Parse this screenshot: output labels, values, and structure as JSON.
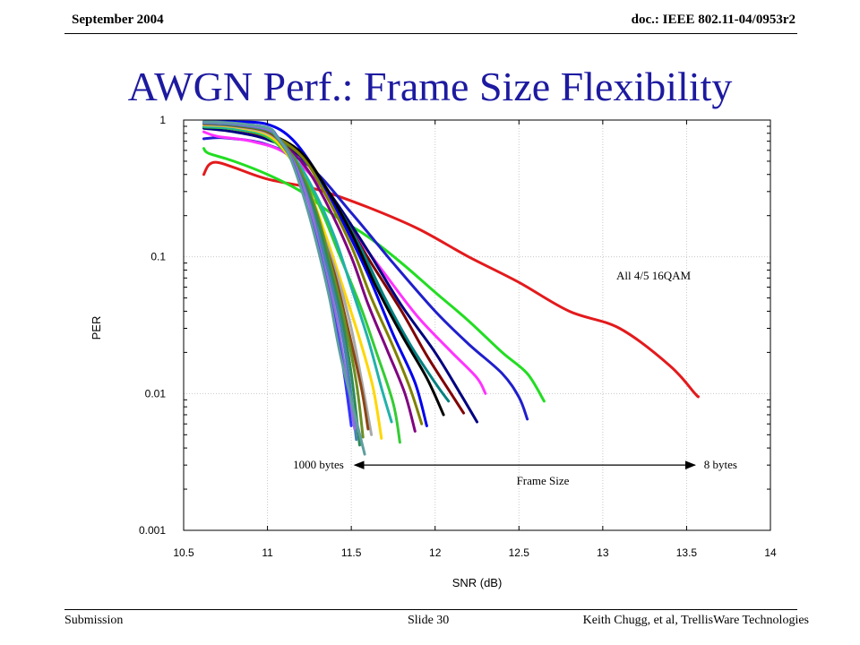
{
  "header": {
    "date": "September 2004",
    "doc_id": "doc.: IEEE 802.11-04/0953r2"
  },
  "slide": {
    "title": "AWGN Perf.: Frame Size Flexibility"
  },
  "footer": {
    "left": "Submission",
    "center": "Slide 30",
    "right": "Keith Chugg, et al, TrellisWare  Technologies"
  },
  "chart_data": {
    "type": "line",
    "title": "",
    "xlabel": "SNR (dB)",
    "ylabel": "PER",
    "xlim": [
      10.5,
      14
    ],
    "ylim": [
      0.001,
      1
    ],
    "yscale": "log",
    "grid": true,
    "x_ticks": [
      "10.5",
      "11",
      "11.5",
      "12",
      "12.5",
      "13",
      "13.5",
      "14"
    ],
    "y_ticks": [
      "1",
      "0.1",
      "0.01",
      "0.001"
    ],
    "annotations": {
      "curve_label": "All 4/5 16QAM",
      "left_arrow_label": "1000 bytes",
      "right_arrow_label": "8 bytes",
      "arrow_caption": "Frame Size",
      "arrow_from_snr": 11.52,
      "arrow_to_snr": 13.55,
      "arrow_per": 0.003
    },
    "series": [
      {
        "color": "#e31a1c",
        "x": [
          10.62,
          10.65,
          10.7,
          10.8,
          11.0,
          11.3,
          11.6,
          11.9,
          12.2,
          12.5,
          12.8,
          13.1,
          13.4,
          13.55,
          13.57
        ],
        "y": [
          0.4,
          0.47,
          0.49,
          0.45,
          0.37,
          0.31,
          0.23,
          0.16,
          0.1,
          0.065,
          0.04,
          0.03,
          0.016,
          0.01,
          0.0095
        ]
      },
      {
        "color": "#22dd22",
        "x": [
          10.62,
          10.65,
          10.8,
          11.0,
          11.2,
          11.4,
          11.6,
          11.8,
          12.0,
          12.2,
          12.4,
          12.55,
          12.65
        ],
        "y": [
          0.62,
          0.57,
          0.5,
          0.4,
          0.3,
          0.2,
          0.14,
          0.09,
          0.055,
          0.034,
          0.02,
          0.014,
          0.0088
        ]
      },
      {
        "color": "#1f1fcc",
        "x": [
          10.62,
          10.75,
          11.0,
          11.25,
          11.5,
          11.75,
          12.0,
          12.2,
          12.4,
          12.5,
          12.55
        ],
        "y": [
          0.73,
          0.74,
          0.66,
          0.46,
          0.21,
          0.09,
          0.04,
          0.023,
          0.014,
          0.0094,
          0.0065
        ]
      },
      {
        "color": "#ff33ff",
        "x": [
          10.62,
          10.7,
          10.9,
          11.1,
          11.3,
          11.5,
          11.7,
          11.9,
          12.1,
          12.25,
          12.3
        ],
        "y": [
          0.82,
          0.76,
          0.7,
          0.58,
          0.35,
          0.16,
          0.075,
          0.036,
          0.02,
          0.013,
          0.01
        ]
      },
      {
        "color": "#000080",
        "x": [
          10.62,
          10.8,
          11.0,
          11.2,
          11.4,
          11.6,
          11.8,
          12.0,
          12.15,
          12.25
        ],
        "y": [
          0.87,
          0.82,
          0.72,
          0.54,
          0.26,
          0.11,
          0.044,
          0.02,
          0.01,
          0.0062
        ]
      },
      {
        "color": "#800000",
        "x": [
          10.62,
          10.8,
          11.0,
          11.2,
          11.4,
          11.6,
          11.8,
          11.95,
          12.1,
          12.17
        ],
        "y": [
          0.9,
          0.86,
          0.75,
          0.55,
          0.25,
          0.098,
          0.04,
          0.019,
          0.0098,
          0.0072
        ]
      },
      {
        "color": "#008080",
        "x": [
          10.62,
          10.8,
          11.0,
          11.2,
          11.4,
          11.55,
          11.7,
          11.85,
          12.0,
          12.08
        ],
        "y": [
          0.92,
          0.88,
          0.78,
          0.55,
          0.25,
          0.12,
          0.05,
          0.023,
          0.012,
          0.0088
        ]
      },
      {
        "color": "#0000ee",
        "x": [
          10.62,
          10.8,
          11.0,
          11.15,
          11.3,
          11.45,
          11.6,
          11.75,
          11.88,
          11.95
        ],
        "y": [
          0.96,
          0.97,
          0.93,
          0.72,
          0.4,
          0.18,
          0.074,
          0.027,
          0.012,
          0.0058
        ]
      },
      {
        "color": "#000000",
        "x": [
          10.62,
          10.8,
          11.0,
          11.2,
          11.35,
          11.5,
          11.65,
          11.8,
          11.95,
          12.05
        ],
        "y": [
          0.94,
          0.9,
          0.8,
          0.58,
          0.32,
          0.15,
          0.06,
          0.027,
          0.013,
          0.007
        ]
      },
      {
        "color": "#808000",
        "x": [
          10.62,
          10.8,
          11.0,
          11.2,
          11.35,
          11.5,
          11.62,
          11.75,
          11.85,
          11.92
        ],
        "y": [
          0.93,
          0.9,
          0.8,
          0.55,
          0.28,
          0.12,
          0.05,
          0.022,
          0.011,
          0.006
        ]
      },
      {
        "color": "#800080",
        "x": [
          10.62,
          10.8,
          11.0,
          11.2,
          11.35,
          11.5,
          11.6,
          11.72,
          11.82,
          11.88
        ],
        "y": [
          0.91,
          0.88,
          0.77,
          0.5,
          0.25,
          0.1,
          0.045,
          0.02,
          0.01,
          0.0053
        ]
      },
      {
        "color": "#33cc33",
        "x": [
          10.62,
          10.8,
          11.0,
          11.15,
          11.3,
          11.42,
          11.55,
          11.65,
          11.75,
          11.79
        ],
        "y": [
          0.89,
          0.86,
          0.75,
          0.5,
          0.25,
          0.11,
          0.045,
          0.02,
          0.0085,
          0.0044
        ]
      },
      {
        "color": "#20b2aa",
        "x": [
          10.62,
          10.8,
          11.0,
          11.15,
          11.28,
          11.4,
          11.5,
          11.6,
          11.68,
          11.74
        ],
        "y": [
          0.9,
          0.87,
          0.77,
          0.55,
          0.3,
          0.14,
          0.06,
          0.025,
          0.011,
          0.0062
        ]
      },
      {
        "color": "#ffd700",
        "x": [
          10.62,
          10.8,
          11.0,
          11.12,
          11.25,
          11.35,
          11.45,
          11.55,
          11.63,
          11.68
        ],
        "y": [
          0.92,
          0.89,
          0.78,
          0.56,
          0.3,
          0.14,
          0.06,
          0.025,
          0.011,
          0.0047
        ]
      },
      {
        "color": "#a9a9a9",
        "x": [
          10.62,
          10.8,
          11.0,
          11.12,
          11.22,
          11.32,
          11.42,
          11.5,
          11.57,
          11.62
        ],
        "y": [
          0.93,
          0.9,
          0.8,
          0.6,
          0.34,
          0.16,
          0.07,
          0.03,
          0.011,
          0.005
        ]
      },
      {
        "color": "#8b4513",
        "x": [
          10.62,
          10.8,
          11.0,
          11.1,
          11.2,
          11.3,
          11.4,
          11.48,
          11.56,
          11.6
        ],
        "y": [
          0.94,
          0.91,
          0.82,
          0.63,
          0.38,
          0.18,
          0.075,
          0.03,
          0.011,
          0.0055
        ]
      },
      {
        "color": "#6b8e23",
        "x": [
          10.62,
          10.8,
          11.0,
          11.1,
          11.2,
          11.3,
          11.38,
          11.46,
          11.53,
          11.57
        ],
        "y": [
          0.95,
          0.92,
          0.84,
          0.66,
          0.42,
          0.2,
          0.085,
          0.034,
          0.012,
          0.0048
        ]
      },
      {
        "color": "#2e8b57",
        "x": [
          10.62,
          10.8,
          11.0,
          11.08,
          11.18,
          11.28,
          11.36,
          11.44,
          11.5,
          11.55
        ],
        "y": [
          0.95,
          0.92,
          0.84,
          0.68,
          0.44,
          0.22,
          0.095,
          0.037,
          0.014,
          0.0042
        ]
      },
      {
        "color": "#4682b4",
        "x": [
          10.62,
          10.8,
          11.0,
          11.08,
          11.17,
          11.26,
          11.34,
          11.42,
          11.48,
          11.53
        ],
        "y": [
          0.96,
          0.93,
          0.85,
          0.7,
          0.46,
          0.23,
          0.1,
          0.04,
          0.015,
          0.0046
        ]
      },
      {
        "color": "#9370db",
        "x": [
          10.62,
          10.8,
          11.0,
          11.07,
          11.16,
          11.25,
          11.32,
          11.4,
          11.46,
          11.52
        ],
        "y": [
          0.96,
          0.94,
          0.86,
          0.72,
          0.48,
          0.24,
          0.105,
          0.042,
          0.016,
          0.0055
        ]
      },
      {
        "color": "#3333ff",
        "x": [
          10.62,
          10.8,
          11.0,
          11.06,
          11.14,
          11.22,
          11.3,
          11.38,
          11.45,
          11.5
        ],
        "y": [
          0.97,
          0.95,
          0.88,
          0.75,
          0.52,
          0.27,
          0.12,
          0.045,
          0.016,
          0.0058
        ]
      },
      {
        "color": "#5f9ea0",
        "x": [
          10.62,
          10.8,
          11.0,
          11.05,
          11.13,
          11.21,
          11.29,
          11.37,
          11.44,
          11.58
        ],
        "y": [
          0.97,
          0.95,
          0.88,
          0.77,
          0.55,
          0.29,
          0.13,
          0.05,
          0.018,
          0.0036
        ]
      }
    ]
  }
}
